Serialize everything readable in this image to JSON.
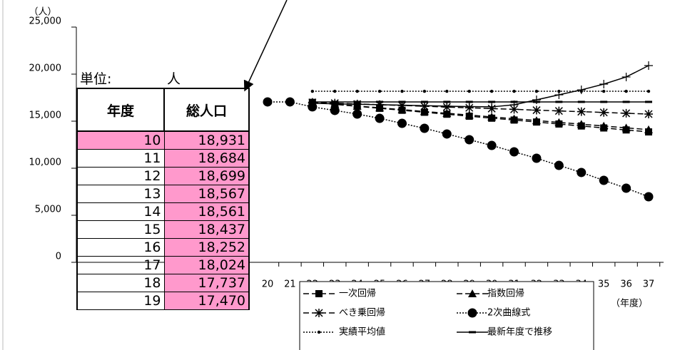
{
  "chart_data": {
    "type": "line",
    "y_unit_label": "（人）",
    "x_unit_label": "（年度）",
    "categories": [
      "20",
      "21",
      "22",
      "23",
      "24",
      "25",
      "26",
      "27",
      "28",
      "29",
      "30",
      "31",
      "32",
      "33",
      "34",
      "35",
      "36",
      "37"
    ],
    "ylim": [
      0,
      25000
    ],
    "yticks": [
      {
        "value": 0,
        "label": "0"
      },
      {
        "value": 5000,
        "label": "5,000"
      },
      {
        "value": 10000,
        "label": "10,000"
      },
      {
        "value": 15000,
        "label": "15,000"
      },
      {
        "value": 20000,
        "label": "20,000"
      },
      {
        "value": 25000,
        "label": "25,000"
      }
    ],
    "legend_position": "bottom",
    "series": [
      {
        "name": "一次回帰",
        "color": "#000000",
        "line_style": "dashed",
        "marker": "square",
        "values": [
          null,
          null,
          17000,
          16790,
          16580,
          16370,
          16160,
          15950,
          15740,
          15530,
          15320,
          15120,
          14910,
          14700,
          14490,
          14280,
          14070,
          13860
        ]
      },
      {
        "name": "指数回帰",
        "color": "#000000",
        "line_style": "dashed",
        "marker": "triangle",
        "values": [
          null,
          null,
          17000,
          16810,
          16610,
          16420,
          16230,
          16030,
          15840,
          15650,
          15450,
          15260,
          15070,
          14870,
          14680,
          14490,
          14290,
          14100
        ]
      },
      {
        "name": "べき乗回帰",
        "color": "#000000",
        "line_style": "dashed",
        "marker": "asterisk",
        "values": [
          null,
          null,
          17000,
          16920,
          16830,
          16750,
          16670,
          16590,
          16500,
          16420,
          16340,
          16260,
          16170,
          16090,
          16010,
          15930,
          15840,
          15760
        ]
      },
      {
        "name": "2次曲線式",
        "color": "#000000",
        "line_style": "dotted",
        "marker": "circle",
        "values": [
          17050,
          17050,
          16520,
          16140,
          15760,
          15300,
          14770,
          14240,
          13640,
          13030,
          12420,
          11740,
          11060,
          10300,
          9550,
          8710,
          7880,
          6970
        ]
      },
      {
        "name": "実績平均値",
        "color": "#000000",
        "line_style": "dotted",
        "marker": "dot",
        "values": [
          null,
          null,
          18180,
          18180,
          18180,
          18180,
          18180,
          18180,
          18180,
          18180,
          18180,
          18180,
          18180,
          18180,
          18180,
          18180,
          18180,
          18180
        ]
      },
      {
        "name": "最新年度で推移",
        "color": "#000000",
        "line_style": "solid",
        "marker": "dash",
        "values": [
          null,
          null,
          17050,
          17050,
          17050,
          17050,
          17050,
          17050,
          17050,
          17050,
          17050,
          17050,
          17050,
          17050,
          17050,
          17050,
          17050,
          17050
        ]
      },
      {
        "color": "#000000",
        "line_style": "solid",
        "marker": "plus",
        "values": [
          null,
          null,
          16900,
          16850,
          16800,
          16750,
          16700,
          16650,
          16600,
          16550,
          16520,
          16740,
          17270,
          17800,
          18330,
          18940,
          19700,
          20910
        ]
      }
    ]
  },
  "table": {
    "unit_label": "単位:",
    "unit": "人",
    "headers": [
      "年度",
      "総人口"
    ],
    "rows": [
      [
        10,
        "18,931"
      ],
      [
        11,
        "18,684"
      ],
      [
        12,
        "18,699"
      ],
      [
        13,
        "18,567"
      ],
      [
        14,
        "18,561"
      ],
      [
        15,
        "18,437"
      ],
      [
        16,
        "18,252"
      ],
      [
        17,
        "18,024"
      ],
      [
        18,
        "17,737"
      ],
      [
        19,
        "17,470"
      ]
    ]
  }
}
